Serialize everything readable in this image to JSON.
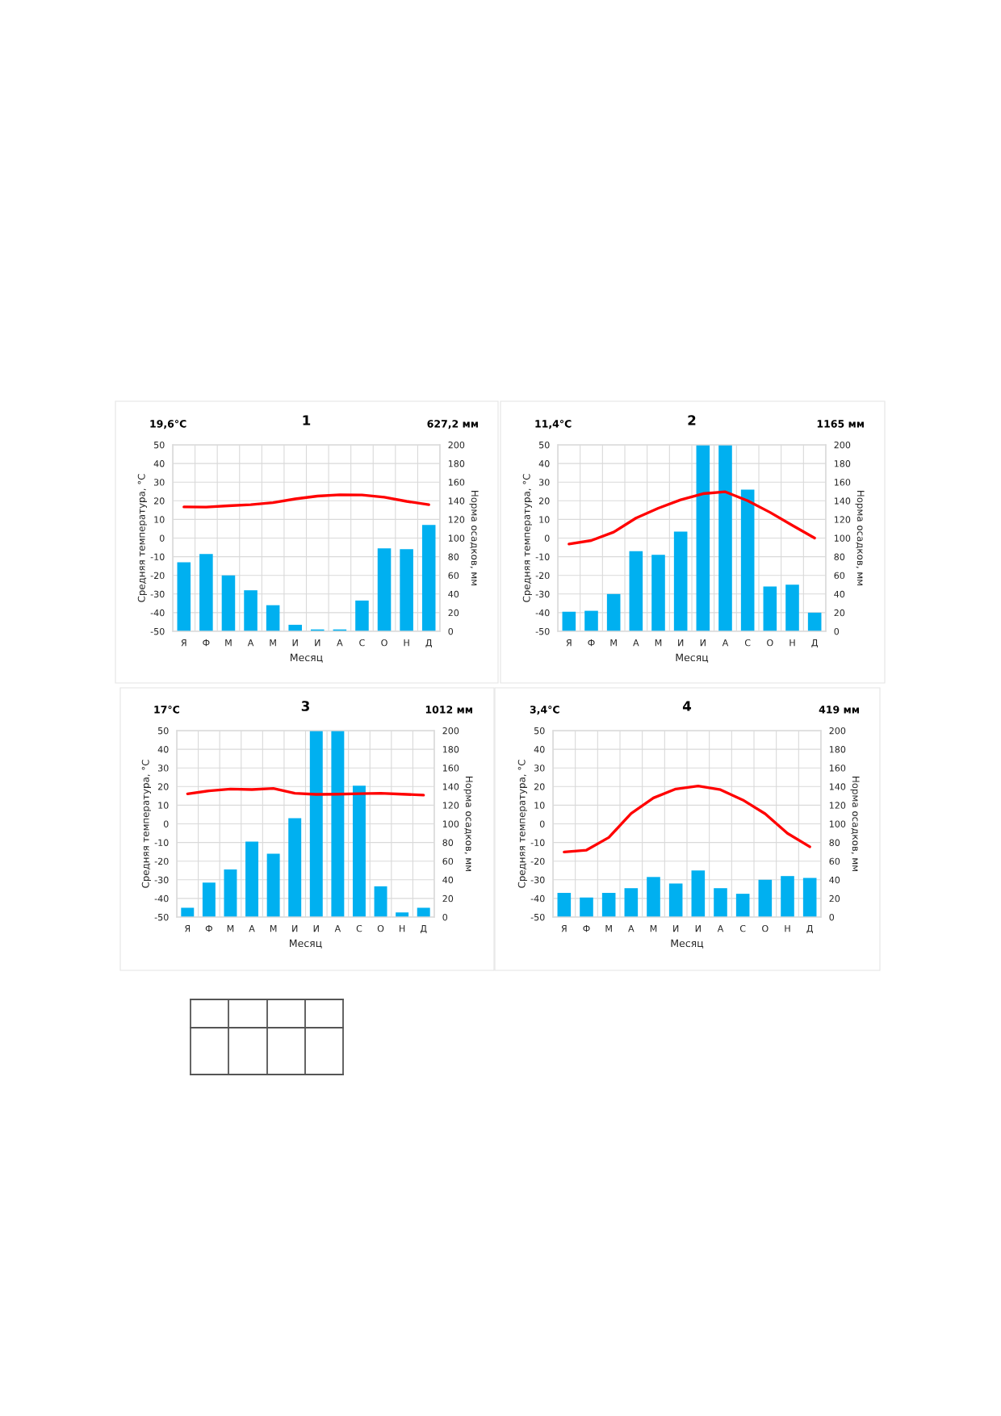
{
  "chart_data": [
    {
      "type": "bar",
      "title": "1",
      "annotations": [
        "19,6°C",
        "627,2 мм"
      ],
      "xlabel": "Месяц",
      "ylabel": "Средняя температура, °C",
      "y2label": "Норма осадков, мм",
      "categories": [
        "Я",
        "Ф",
        "М",
        "А",
        "М",
        "И",
        "И",
        "А",
        "С",
        "О",
        "Н",
        "Д"
      ],
      "series": [
        {
          "axis": "y2",
          "color": "#00b0f0",
          "values": [
            74,
            83,
            60,
            44,
            28,
            7,
            2,
            2,
            33,
            89,
            88,
            114
          ]
        },
        {
          "type": "line",
          "color": "#ff0000",
          "values": [
            16.7,
            16.6,
            17.3,
            17.9,
            19.0,
            21.0,
            22.5,
            23.2,
            23.1,
            21.9,
            19.7,
            17.9
          ]
        }
      ],
      "ylim": [
        -50,
        50
      ],
      "yticks": [
        -50,
        -40,
        -30,
        -20,
        -10,
        0,
        10,
        20,
        30,
        40,
        50
      ],
      "y2lim": [
        0,
        200
      ],
      "y2ticks": [
        0,
        20,
        40,
        60,
        80,
        100,
        120,
        140,
        160,
        180,
        200
      ],
      "grid": true
    },
    {
      "type": "bar",
      "title": "2",
      "annotations": [
        "11,4°C",
        "1165 мм"
      ],
      "xlabel": "Месяц",
      "ylabel": "Средняя температура, °C",
      "y2label": "Норма осадков, мм",
      "categories": [
        "Я",
        "Ф",
        "М",
        "А",
        "М",
        "И",
        "И",
        "А",
        "С",
        "О",
        "Н",
        "Д"
      ],
      "series": [
        {
          "axis": "y2",
          "color": "#00b0f0",
          "values": [
            21,
            22,
            40,
            86,
            82,
            107,
            200,
            200,
            152,
            48,
            50,
            20
          ]
        },
        {
          "type": "line",
          "color": "#ff0000",
          "values": [
            -3.2,
            -1.3,
            3.2,
            10.7,
            16.0,
            20.5,
            23.8,
            24.8,
            20.0,
            13.8,
            6.8,
            0
          ]
        }
      ],
      "ylim": [
        -50,
        50
      ],
      "yticks": [
        -50,
        -40,
        -30,
        -20,
        -10,
        0,
        10,
        20,
        30,
        40,
        50
      ],
      "y2lim": [
        0,
        200
      ],
      "y2ticks": [
        0,
        20,
        40,
        60,
        80,
        100,
        120,
        140,
        160,
        180,
        200
      ],
      "grid": true
    },
    {
      "type": "bar",
      "title": "3",
      "annotations": [
        "17°C",
        "1012 мм"
      ],
      "xlabel": "Месяц",
      "ylabel": "Средняя температура, °C",
      "y2label": "Норма осадков, мм",
      "categories": [
        "Я",
        "Ф",
        "М",
        "А",
        "М",
        "И",
        "И",
        "А",
        "С",
        "О",
        "Н",
        "Д"
      ],
      "series": [
        {
          "axis": "y2",
          "color": "#00b0f0",
          "values": [
            10,
            37,
            51,
            81,
            68,
            106,
            200,
            200,
            141,
            33,
            5,
            10
          ]
        },
        {
          "type": "line",
          "color": "#ff0000",
          "values": [
            16.1,
            17.7,
            18.7,
            18.4,
            19.0,
            16.4,
            15.8,
            15.9,
            16.2,
            16.4,
            15.9,
            15.4
          ]
        }
      ],
      "ylim": [
        -50,
        50
      ],
      "yticks": [
        -50,
        -40,
        -30,
        -20,
        -10,
        0,
        10,
        20,
        30,
        40,
        50
      ],
      "y2lim": [
        0,
        200
      ],
      "y2ticks": [
        0,
        20,
        40,
        60,
        80,
        100,
        120,
        140,
        160,
        180,
        200
      ],
      "grid": true
    },
    {
      "type": "bar",
      "title": "4",
      "annotations": [
        "3,4°C",
        "419 мм"
      ],
      "xlabel": "Месяц",
      "ylabel": "Средняя температура, °C",
      "y2label": "Норма осадков, мм",
      "categories": [
        "Я",
        "Ф",
        "М",
        "А",
        "М",
        "И",
        "И",
        "А",
        "С",
        "О",
        "Н",
        "Д"
      ],
      "series": [
        {
          "axis": "y2",
          "color": "#00b0f0",
          "values": [
            26,
            21,
            26,
            31,
            43,
            36,
            50,
            31,
            25,
            40,
            44,
            42
          ]
        },
        {
          "type": "line",
          "color": "#ff0000",
          "values": [
            -15.1,
            -14.1,
            -7.3,
            5.6,
            13.9,
            18.7,
            20.3,
            18.3,
            12.8,
            5.4,
            -5.1,
            -12.3
          ]
        }
      ],
      "ylim": [
        -50,
        50
      ],
      "yticks": [
        -50,
        -40,
        -30,
        -20,
        -10,
        0,
        10,
        20,
        30,
        40,
        50
      ],
      "y2lim": [
        0,
        200
      ],
      "y2ticks": [
        0,
        20,
        40,
        60,
        80,
        100,
        120,
        140,
        160,
        180,
        200
      ],
      "grid": true
    }
  ]
}
